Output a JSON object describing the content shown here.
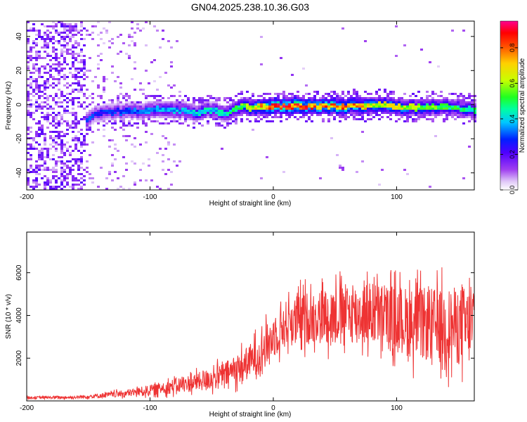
{
  "title": "GN04.2025.238.10.36.G03",
  "chart_data": [
    {
      "type": "heatmap",
      "title": "GN04.2025.238.10.36.G03",
      "xlabel": "Height of straight line (km)",
      "ylabel": "Frequency (Hz)",
      "xlim": [
        -200,
        163
      ],
      "ylim": [
        -50,
        49
      ],
      "xticks": [
        -200,
        -100,
        0,
        100
      ],
      "yticks": [
        -40,
        -20,
        0,
        20,
        40
      ],
      "ridge": {
        "description": "dominant spectral ridge frequency vs height",
        "x": [
          -153,
          -145,
          -130,
          -110,
          -90,
          -70,
          -60,
          -50,
          -40,
          -35,
          -25,
          -15,
          0,
          20,
          40,
          60,
          80,
          100,
          120,
          140,
          163
        ],
        "frequency_hz": [
          -10,
          -6,
          -4,
          -4,
          -3,
          -4,
          -5,
          -3,
          -5,
          -4,
          -1,
          -2,
          -1,
          -1,
          -1,
          -1,
          0,
          -1,
          -2,
          -1,
          -3
        ],
        "amplitude": [
          0.35,
          0.3,
          0.3,
          0.35,
          0.4,
          0.4,
          0.45,
          0.45,
          0.45,
          0.5,
          0.6,
          0.7,
          0.9,
          0.9,
          0.85,
          0.85,
          0.7,
          0.7,
          0.6,
          0.55,
          0.5
        ]
      },
      "noise_region": {
        "x_from": -200,
        "x_to": -153,
        "description": "broadband low-amplitude noise"
      },
      "colorbar": {
        "label": "Normalized spectral amplitude",
        "range": [
          0.0,
          0.95
        ],
        "ticks": [
          0.0,
          0.2,
          0.4,
          0.6,
          0.8
        ],
        "tick_labels": [
          "0.0",
          "0.2",
          "0.4",
          "0.6",
          "0.8"
        ]
      }
    },
    {
      "type": "line",
      "xlabel": "Height of straight line (km)",
      "ylabel": "SNR (10 * v/v)",
      "xlim": [
        -200,
        163
      ],
      "ylim": [
        0,
        7900
      ],
      "xticks": [
        -200,
        -100,
        0,
        100
      ],
      "yticks": [
        2000,
        4000,
        6000
      ],
      "series": [
        {
          "name": "SNR",
          "color": "#ee3333",
          "x": [
            -200,
            -160,
            -140,
            -120,
            -100,
            -80,
            -60,
            -40,
            -30,
            -20,
            -10,
            0,
            10,
            20,
            40,
            60,
            80,
            100,
            120,
            140,
            163
          ],
          "mean": [
            150,
            170,
            250,
            350,
            500,
            700,
            900,
            1200,
            1500,
            1800,
            2300,
            3000,
            3600,
            3800,
            4000,
            4100,
            4100,
            3800,
            3600,
            3500,
            3500
          ],
          "spread": [
            60,
            70,
            120,
            160,
            250,
            350,
            450,
            600,
            700,
            800,
            900,
            1000,
            1100,
            1200,
            1300,
            1400,
            1500,
            1600,
            1700,
            1800,
            1900
          ]
        }
      ]
    }
  ],
  "colors": {
    "line": "#ee3333",
    "axes": "#000000"
  }
}
